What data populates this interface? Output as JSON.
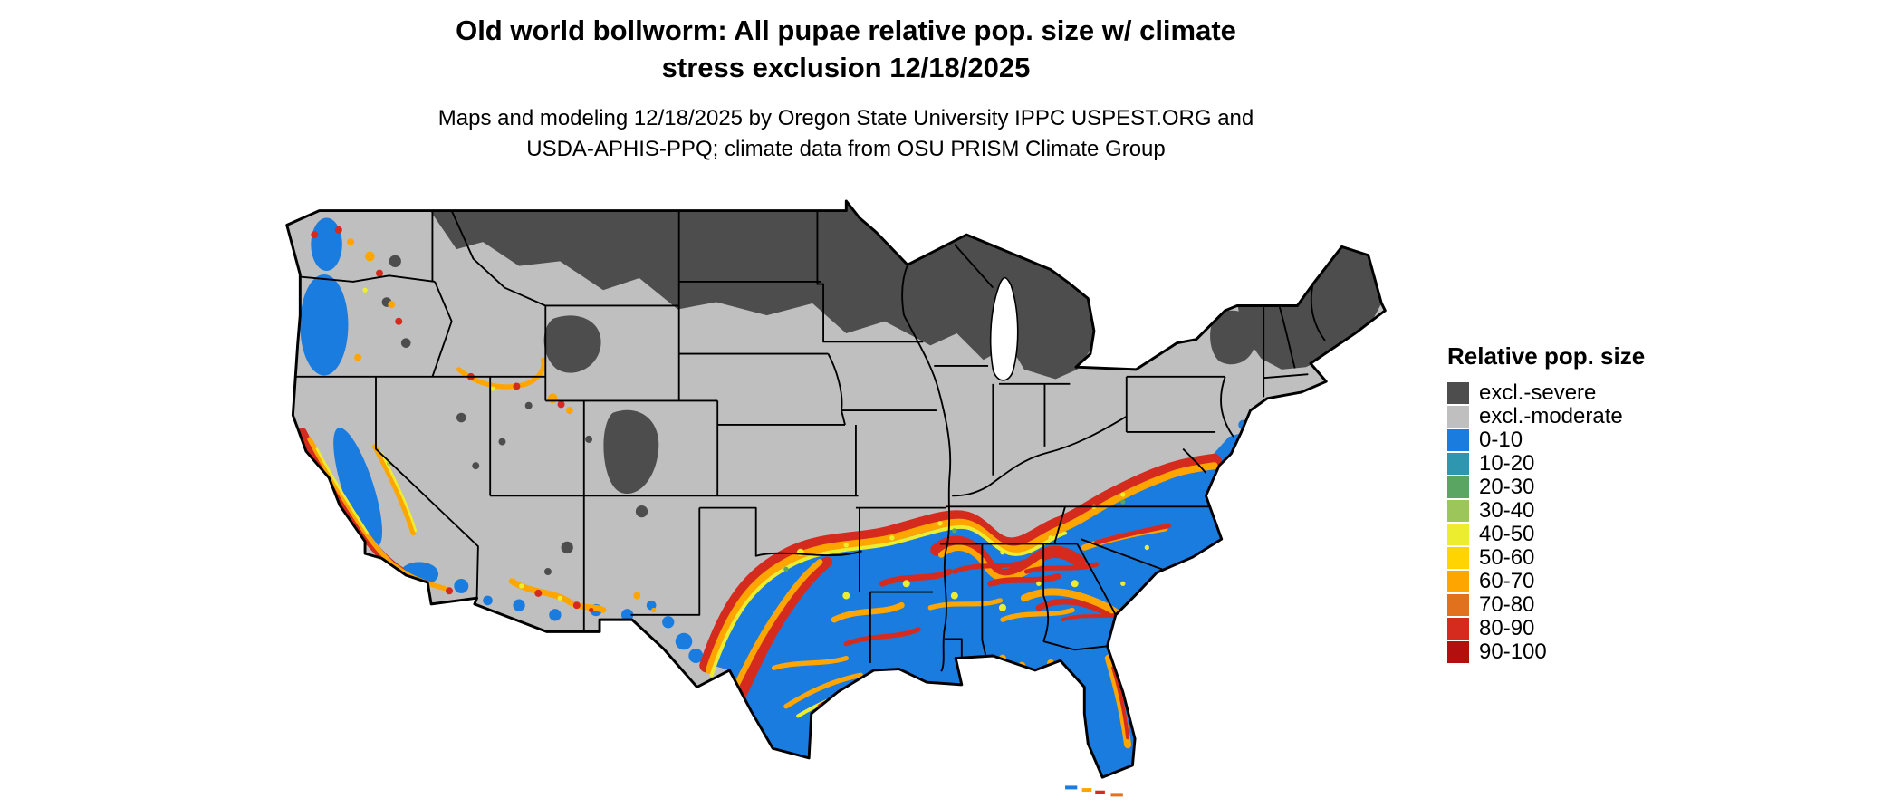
{
  "page": {
    "background": "#ffffff"
  },
  "title": {
    "line1": "Old world bollworm: All pupae relative pop. size w/ climate",
    "line2": "stress exclusion 12/18/2025"
  },
  "subtitle": {
    "line1": "Maps and modeling 12/18/2025 by Oregon State University IPPC USPEST.ORG and",
    "line2": "USDA-APHIS-PPQ; climate data from OSU PRISM Climate Group"
  },
  "legend": {
    "title": "Relative pop. size",
    "items": [
      {
        "label": "excl.-severe",
        "color": "#4D4D4D"
      },
      {
        "label": "excl.-moderate",
        "color": "#BFBFBF"
      },
      {
        "label": "0-10",
        "color": "#1B7CE0"
      },
      {
        "label": "10-20",
        "color": "#2E96AE"
      },
      {
        "label": "20-30",
        "color": "#5AA562"
      },
      {
        "label": "30-40",
        "color": "#9CC65A"
      },
      {
        "label": "40-50",
        "color": "#EDED30"
      },
      {
        "label": "50-60",
        "color": "#FFD400"
      },
      {
        "label": "60-70",
        "color": "#FFA500"
      },
      {
        "label": "70-80",
        "color": "#E2711D"
      },
      {
        "label": "80-90",
        "color": "#D42B1E"
      },
      {
        "label": "90-100",
        "color": "#B40F0F"
      }
    ]
  },
  "map_data": {
    "type": "raster-choropleth",
    "extent": "Continental United States with state boundaries",
    "regions": [
      {
        "region": "Northern tier (MT, ND, MN, WI, MI, northern New England, Adirondacks, high Rockies of WY/CO)",
        "class": "excl.-severe"
      },
      {
        "region": "Interior west, central plains, Midwest, mid-Atlantic interior",
        "class": "excl.-moderate"
      },
      {
        "region": "Southern US from central TX through Gulf states, Southeast, FL and Atlantic coastal plain; Pacific coastal valleys of WA/OR/CA; southern AZ/NM",
        "class": "0-10 dominant"
      },
      {
        "region": "Transition bands along edges of southern zone (central TX, north LA/MS/AL, north GA, Carolina piedmont, CA coast ranges and Sierra foothills, Snake River Plain rim, southern AZ)",
        "class": "40-50 through 90-100 mix"
      }
    ]
  }
}
